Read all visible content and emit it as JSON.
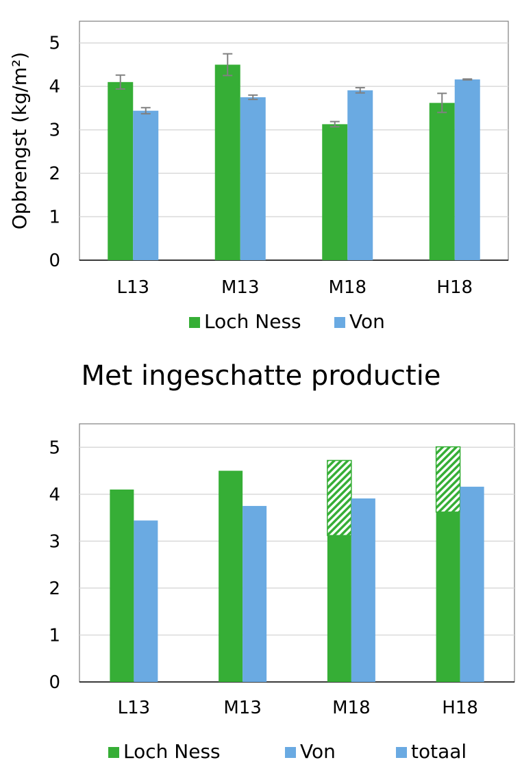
{
  "colors": {
    "loch_ness": "#36AE36",
    "von": "#6AAAE2",
    "estimate_hatch": "#36AE36",
    "grid": "#D9D9D9",
    "axis": "#808080",
    "error_bar": "#808080"
  },
  "chart_data": [
    {
      "type": "bar",
      "title": "",
      "xlabel": "",
      "ylabel": "Opbrengst (kg/m²)",
      "ylim": [
        0,
        5.5
      ],
      "yticks": [
        0,
        1,
        2,
        3,
        4,
        5
      ],
      "grid": true,
      "legend_position": "bottom",
      "categories": [
        "L13",
        "M13",
        "M18",
        "H18"
      ],
      "series": [
        {
          "name": "Loch Ness",
          "values": [
            4.1,
            4.5,
            3.13,
            3.62
          ],
          "error": [
            0.16,
            0.25,
            0.06,
            0.22
          ]
        },
        {
          "name": "Von",
          "values": [
            3.44,
            3.75,
            3.91,
            4.16
          ],
          "error": [
            0.07,
            0.05,
            0.06,
            0.01
          ]
        }
      ]
    },
    {
      "type": "bar",
      "title": "Met ingeschatte productie",
      "xlabel": "",
      "ylabel": "",
      "ylim": [
        0,
        5.5
      ],
      "yticks": [
        0,
        1,
        2,
        3,
        4,
        5
      ],
      "grid": true,
      "legend_position": "bottom",
      "categories": [
        "L13",
        "M13",
        "M18",
        "H18"
      ],
      "series": [
        {
          "name": "Loch Ness",
          "values": [
            4.1,
            4.5,
            3.12,
            3.62
          ]
        },
        {
          "name": "Von",
          "values": [
            3.44,
            3.75,
            3.91,
            4.16
          ]
        },
        {
          "name": "totaal",
          "values": [
            null,
            null,
            4.72,
            5.01
          ]
        }
      ]
    }
  ]
}
